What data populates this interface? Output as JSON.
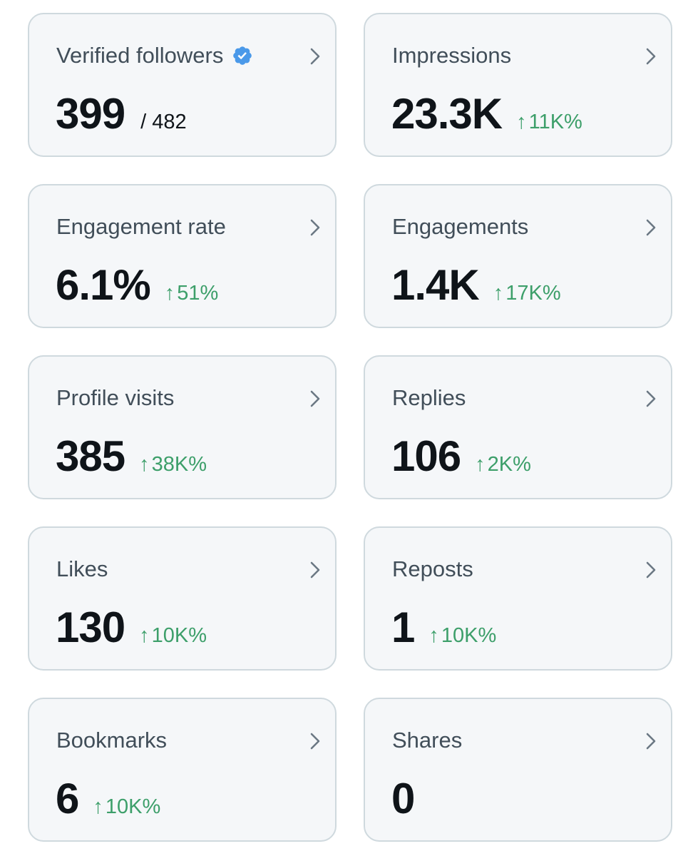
{
  "accent_color": "#1d9bf0",
  "positive_color": "#3d9f6a",
  "cards": [
    {
      "label": "Verified followers",
      "value": "399",
      "secondary": "/ 482",
      "delta": "",
      "delta_arrow": "",
      "icon": "verified-badge-icon"
    },
    {
      "label": "Impressions",
      "value": "23.3K",
      "secondary": "",
      "delta": "11K%",
      "delta_arrow": "↑"
    },
    {
      "label": "Engagement rate",
      "value": "6.1%",
      "secondary": "",
      "delta": "51%",
      "delta_arrow": "↑"
    },
    {
      "label": "Engagements",
      "value": "1.4K",
      "secondary": "",
      "delta": "17K%",
      "delta_arrow": "↑"
    },
    {
      "label": "Profile visits",
      "value": "385",
      "secondary": "",
      "delta": "38K%",
      "delta_arrow": "↑"
    },
    {
      "label": "Replies",
      "value": "106",
      "secondary": "",
      "delta": "2K%",
      "delta_arrow": "↑"
    },
    {
      "label": "Likes",
      "value": "130",
      "secondary": "",
      "delta": "10K%",
      "delta_arrow": "↑"
    },
    {
      "label": "Reposts",
      "value": "1",
      "secondary": "",
      "delta": "10K%",
      "delta_arrow": "↑"
    },
    {
      "label": "Bookmarks",
      "value": "6",
      "secondary": "",
      "delta": "10K%",
      "delta_arrow": "↑"
    },
    {
      "label": "Shares",
      "value": "0",
      "secondary": "",
      "delta": "",
      "delta_arrow": ""
    }
  ]
}
